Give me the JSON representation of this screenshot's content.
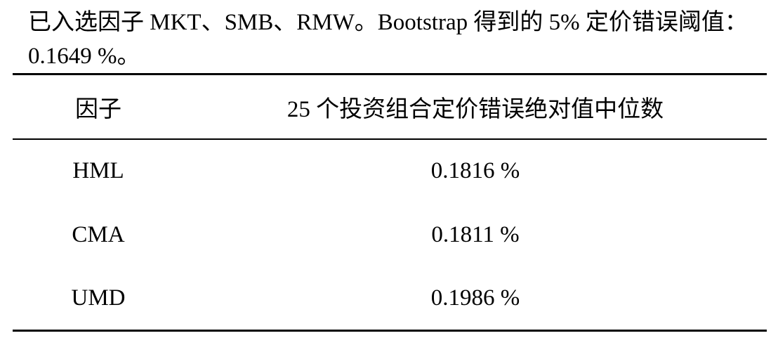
{
  "caption": "已入选因子 MKT、SMB、RMW。Bootstrap 得到的 5% 定价错误阈值：0.1649 %。",
  "table": {
    "header": [
      "因子",
      "25 个投资组合定价错误绝对值中位数"
    ],
    "rows": [
      [
        "HML",
        "0.1816 %"
      ],
      [
        "CMA",
        "0.1811 %"
      ],
      [
        "UMD",
        "0.1986 %"
      ]
    ]
  }
}
